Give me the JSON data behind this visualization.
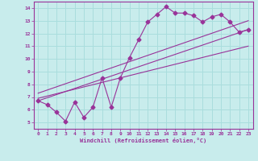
{
  "bg_color": "#c8ecec",
  "line_color": "#993399",
  "grid_color": "#aadddd",
  "xlabel": "Windchill (Refroidissement éolien,°C)",
  "xlabel_color": "#993399",
  "ylim": [
    4.5,
    14.5
  ],
  "xlim": [
    -0.5,
    23.5
  ],
  "yticks": [
    5,
    6,
    7,
    8,
    9,
    10,
    11,
    12,
    13,
    14
  ],
  "xticks": [
    0,
    1,
    2,
    3,
    4,
    5,
    6,
    7,
    8,
    9,
    10,
    11,
    12,
    13,
    14,
    15,
    16,
    17,
    18,
    19,
    20,
    21,
    22,
    23
  ],
  "jagged_x": [
    0,
    1,
    2,
    3,
    4,
    5,
    6,
    7,
    8,
    9,
    10,
    11,
    12,
    13,
    14,
    15,
    16,
    17,
    18,
    19,
    20,
    21,
    22,
    23
  ],
  "jagged_y": [
    6.7,
    6.4,
    5.8,
    5.1,
    6.6,
    5.4,
    6.2,
    8.5,
    6.2,
    8.5,
    10.1,
    11.5,
    12.9,
    13.5,
    14.1,
    13.6,
    13.6,
    13.4,
    12.9,
    13.3,
    13.5,
    12.9,
    12.1,
    12.3
  ],
  "line1_x": [
    0,
    23
  ],
  "line1_y": [
    6.7,
    12.3
  ],
  "line2_x": [
    0,
    23
  ],
  "line2_y": [
    6.9,
    11.0
  ],
  "line3_x": [
    0,
    23
  ],
  "line3_y": [
    7.3,
    13.0
  ]
}
